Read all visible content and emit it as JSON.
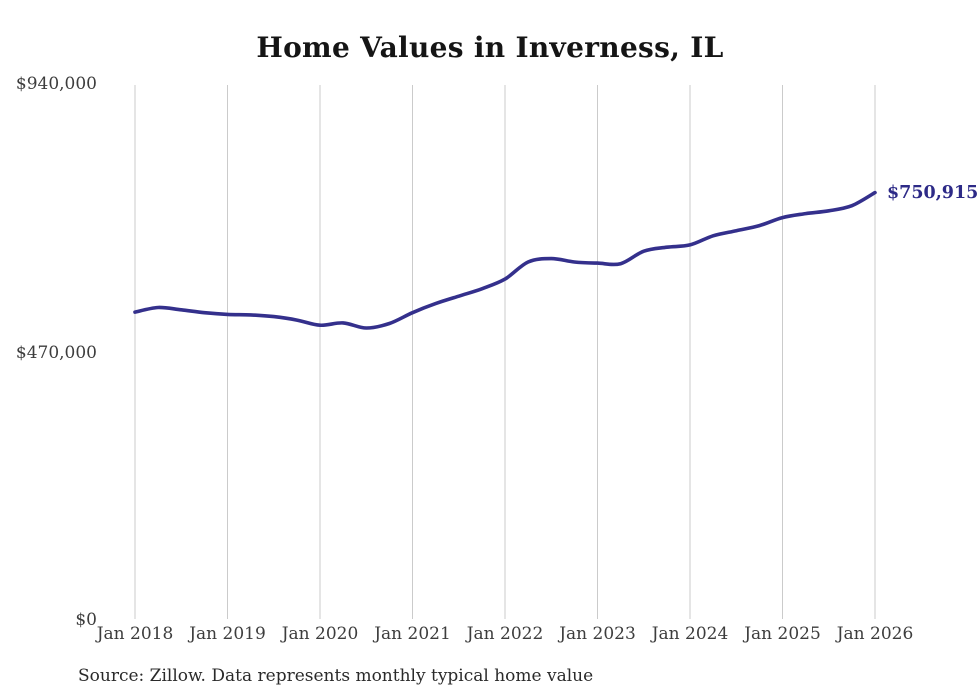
{
  "chart_data": {
    "type": "line",
    "title": "Home Values in Inverness, IL",
    "xlabel": "",
    "ylabel": "",
    "ylim": [
      0,
      940000
    ],
    "grid": "vertical-only",
    "legend": "none",
    "line_color": "#34308c",
    "grid_color": "#cbcbcb",
    "end_label": "$750,915",
    "end_label_color": "#2d2a87",
    "x_tick_labels": [
      "Jan 2018",
      "Jan 2019",
      "Jan 2020",
      "Jan 2021",
      "Jan 2022",
      "Jan 2023",
      "Jan 2024",
      "Jan 2025",
      "Jan 2026"
    ],
    "y_ticks": [
      {
        "value": 0,
        "label": "$0"
      },
      {
        "value": 470000,
        "label": "$470,000"
      },
      {
        "value": 940000,
        "label": "$940,000"
      }
    ],
    "series": [
      {
        "name": "Monthly typical home value",
        "dates": [
          "2018-01",
          "2018-04",
          "2018-07",
          "2018-10",
          "2019-01",
          "2019-04",
          "2019-07",
          "2019-10",
          "2020-01",
          "2020-04",
          "2020-07",
          "2020-10",
          "2021-01",
          "2021-04",
          "2021-07",
          "2021-10",
          "2022-01",
          "2022-04",
          "2022-07",
          "2022-10",
          "2023-01",
          "2023-04",
          "2023-07",
          "2023-10",
          "2024-01",
          "2024-04",
          "2024-07",
          "2024-10",
          "2025-01",
          "2025-04",
          "2025-07",
          "2025-10",
          "2026-01"
        ],
        "values": [
          541000,
          549000,
          545000,
          540000,
          537000,
          536000,
          533000,
          527000,
          518000,
          522000,
          513000,
          521000,
          540000,
          556000,
          569000,
          582000,
          599000,
          629000,
          635000,
          629000,
          627000,
          626000,
          648000,
          655000,
          659000,
          675000,
          684000,
          693000,
          707000,
          714000,
          719000,
          728000,
          750915
        ]
      }
    ]
  },
  "footer": {
    "source_text": "Source: Zillow. Data represents monthly typical home value"
  }
}
